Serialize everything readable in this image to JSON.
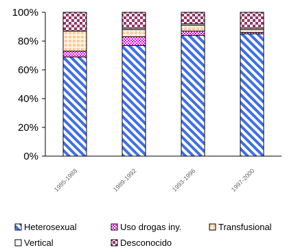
{
  "chart_data": {
    "type": "bar",
    "stacked": "percent",
    "categories": [
      "1985-1988",
      "1989-1992",
      "1993-1996",
      "1997-2000"
    ],
    "series": [
      {
        "name": "Heterosexual",
        "values": [
          69,
          77,
          84,
          85
        ],
        "color": "#3f6ee8",
        "pattern": "diagonal-stripes"
      },
      {
        "name": "Uso drogas iny.",
        "values": [
          4,
          6,
          3,
          1
        ],
        "color": "#ff00ff",
        "pattern": "dots"
      },
      {
        "name": "Transfusional",
        "values": [
          14,
          5,
          4,
          2
        ],
        "color": "#ffcc99",
        "pattern": "grid"
      },
      {
        "name": "Vertical",
        "values": [
          0,
          1,
          1,
          1
        ],
        "color": "#ffffff",
        "pattern": "none"
      },
      {
        "name": "Desconocido",
        "values": [
          13,
          11,
          8,
          11
        ],
        "color": "#993366",
        "pattern": "checker"
      }
    ],
    "yticks": [
      "0%",
      "20%",
      "40%",
      "60%",
      "80%",
      "100%"
    ],
    "ylim": [
      0,
      100
    ],
    "legend_position": "bottom",
    "grid": false
  }
}
